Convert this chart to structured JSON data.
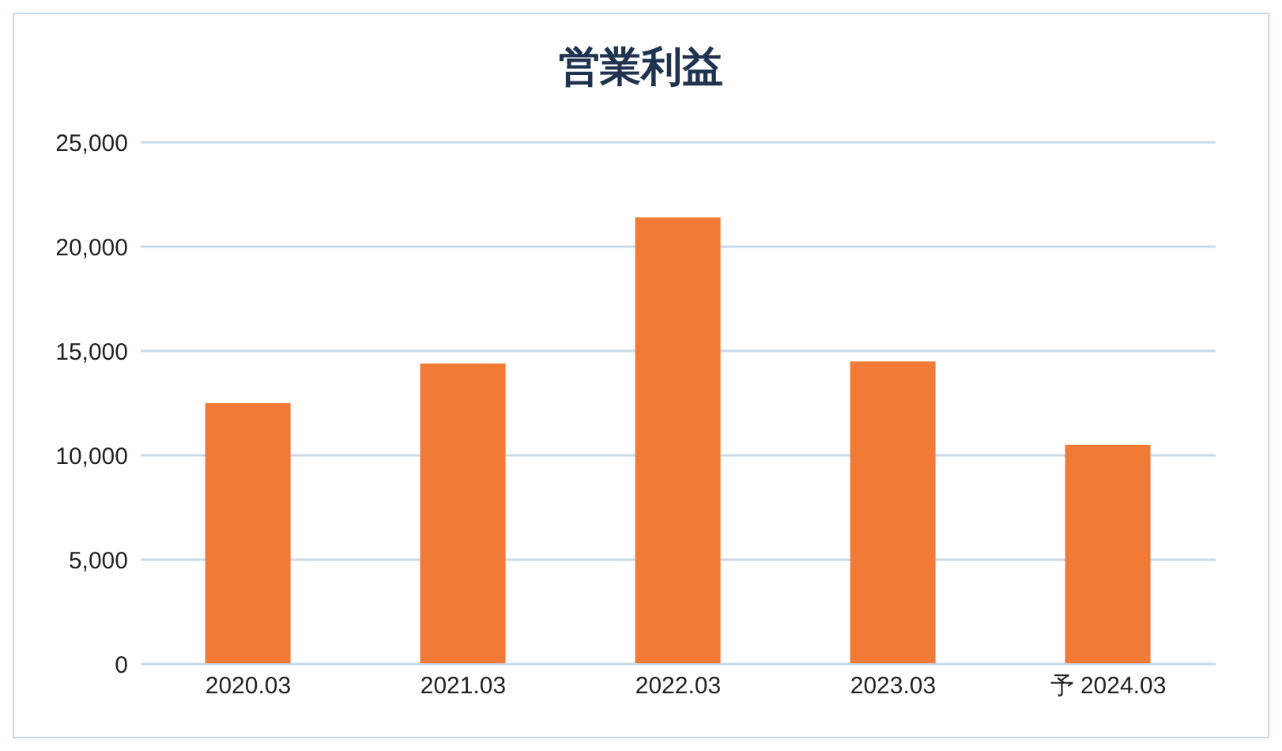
{
  "chart_data": {
    "type": "bar",
    "title": "営業利益",
    "categories": [
      "2020.03",
      "2021.03",
      "2022.03",
      "2023.03",
      "予 2024.03"
    ],
    "values": [
      12500,
      14400,
      21400,
      14500,
      10500
    ],
    "color": "#f07a36",
    "ylim": [
      0,
      25000
    ],
    "yticks": [
      0,
      {
        "value": 5000,
        "label": "5,000"
      },
      {
        "value": 10000,
        "label": "10,000"
      },
      {
        "value": 15000,
        "label": "15,000"
      },
      {
        "value": 20000,
        "label": "20,000"
      },
      {
        "value": 25000,
        "label": "25,000"
      }
    ],
    "grid": "y"
  }
}
